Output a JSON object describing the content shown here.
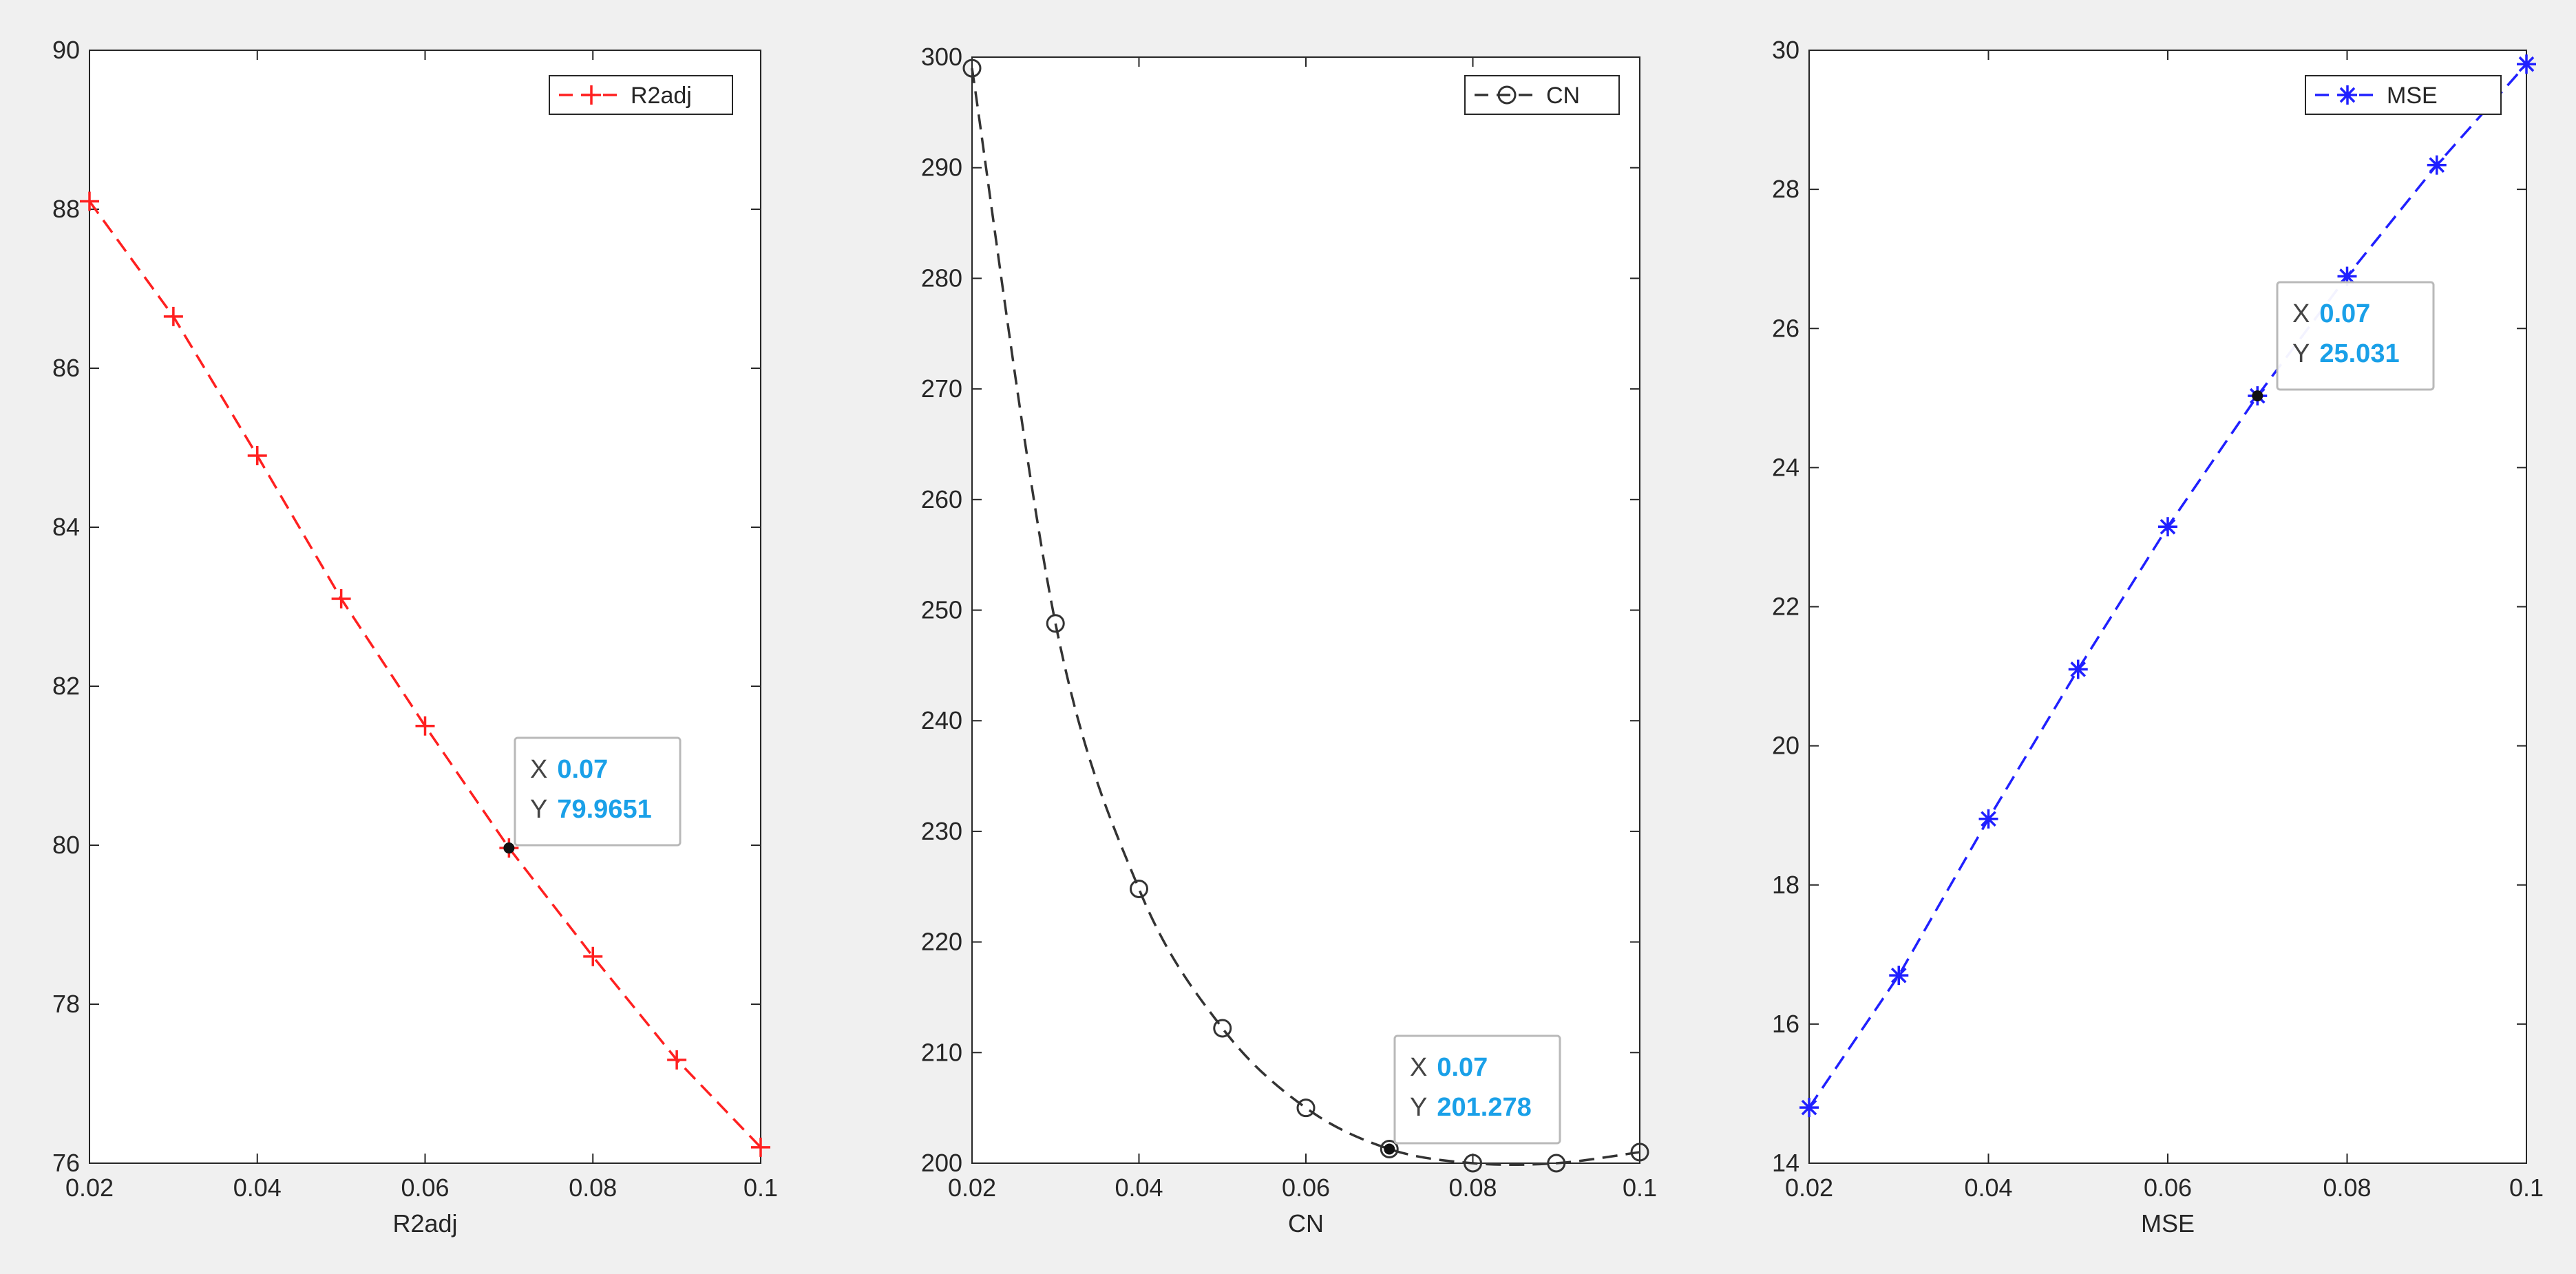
{
  "figure": {
    "background": "#f0f0f0"
  },
  "chart_data": [
    {
      "type": "line",
      "title": "",
      "xlabel": "R2adj",
      "ylabel": "",
      "xlim": [
        0.02,
        0.1
      ],
      "ylim": [
        76,
        90
      ],
      "xticks": [
        0.02,
        0.04,
        0.06,
        0.08,
        0.1
      ],
      "xtick_labels": [
        "0.02",
        "0.04",
        "0.06",
        "0.08",
        "0.1"
      ],
      "yticks": [
        76,
        78,
        80,
        82,
        84,
        86,
        88,
        90
      ],
      "ytick_labels": [
        "76",
        "78",
        "80",
        "82",
        "84",
        "86",
        "88",
        "90"
      ],
      "grid": false,
      "legend": {
        "position": "top-right",
        "entries": [
          "R2adj"
        ]
      },
      "series": [
        {
          "name": "R2adj",
          "color": "#ff2020",
          "line_style": "dashed",
          "marker": "plus",
          "x": [
            0.02,
            0.03,
            0.04,
            0.05,
            0.06,
            0.07,
            0.08,
            0.09,
            0.1
          ],
          "y": [
            88.1,
            86.65,
            84.9,
            83.1,
            81.5,
            79.9651,
            78.6,
            77.3,
            76.2
          ]
        }
      ],
      "datatip": {
        "x": 0.07,
        "y": 79.9651,
        "x_label": "X",
        "y_label": "Y",
        "x_text": "0.07",
        "y_text": "79.9651",
        "value_color": "#1aa0e8"
      }
    },
    {
      "type": "line",
      "title": "",
      "xlabel": "CN",
      "ylabel": "",
      "xlim": [
        0.02,
        0.1
      ],
      "ylim": [
        200,
        300
      ],
      "xticks": [
        0.02,
        0.04,
        0.06,
        0.08,
        0.1
      ],
      "xtick_labels": [
        "0.02",
        "0.04",
        "0.06",
        "0.08",
        "0.1"
      ],
      "yticks": [
        200,
        210,
        220,
        230,
        240,
        250,
        260,
        270,
        280,
        290,
        300
      ],
      "ytick_labels": [
        "200",
        "210",
        "220",
        "230",
        "240",
        "250",
        "260",
        "270",
        "280",
        "290",
        "300"
      ],
      "grid": false,
      "legend": {
        "position": "top-right",
        "entries": [
          "CN"
        ]
      },
      "series": [
        {
          "name": "CN",
          "color": "#333333",
          "line_style": "dashed",
          "marker": "circle",
          "x": [
            0.02,
            0.03,
            0.04,
            0.05,
            0.06,
            0.07,
            0.08,
            0.09,
            0.1
          ],
          "y": [
            299,
            248.8,
            224.8,
            212.2,
            205,
            201.278,
            200,
            200,
            201
          ]
        }
      ],
      "datatip": {
        "x": 0.07,
        "y": 201.278,
        "x_label": "X",
        "y_label": "Y",
        "x_text": "0.07",
        "y_text": "201.278",
        "value_color": "#1aa0e8"
      }
    },
    {
      "type": "line",
      "title": "",
      "xlabel": "MSE",
      "ylabel": "",
      "xlim": [
        0.02,
        0.1
      ],
      "ylim": [
        14,
        30
      ],
      "xticks": [
        0.02,
        0.04,
        0.06,
        0.08,
        0.1
      ],
      "xtick_labels": [
        "0.02",
        "0.04",
        "0.06",
        "0.08",
        "0.1"
      ],
      "yticks": [
        14,
        16,
        18,
        20,
        22,
        24,
        26,
        28,
        30
      ],
      "ytick_labels": [
        "14",
        "16",
        "18",
        "20",
        "22",
        "24",
        "26",
        "28",
        "30"
      ],
      "grid": false,
      "legend": {
        "position": "top-right",
        "entries": [
          "MSE"
        ]
      },
      "series": [
        {
          "name": "MSE",
          "color": "#2020ff",
          "line_style": "dashed",
          "marker": "asterisk",
          "x": [
            0.02,
            0.03,
            0.04,
            0.05,
            0.06,
            0.07,
            0.08,
            0.09,
            0.1
          ],
          "y": [
            14.8,
            16.7,
            18.95,
            21.1,
            23.15,
            25.031,
            26.75,
            28.35,
            29.8
          ]
        }
      ],
      "datatip": {
        "x": 0.07,
        "y": 25.031,
        "x_label": "X",
        "y_label": "Y",
        "x_text": "0.07",
        "y_text": "25.031",
        "value_color": "#1aa0e8"
      }
    }
  ]
}
